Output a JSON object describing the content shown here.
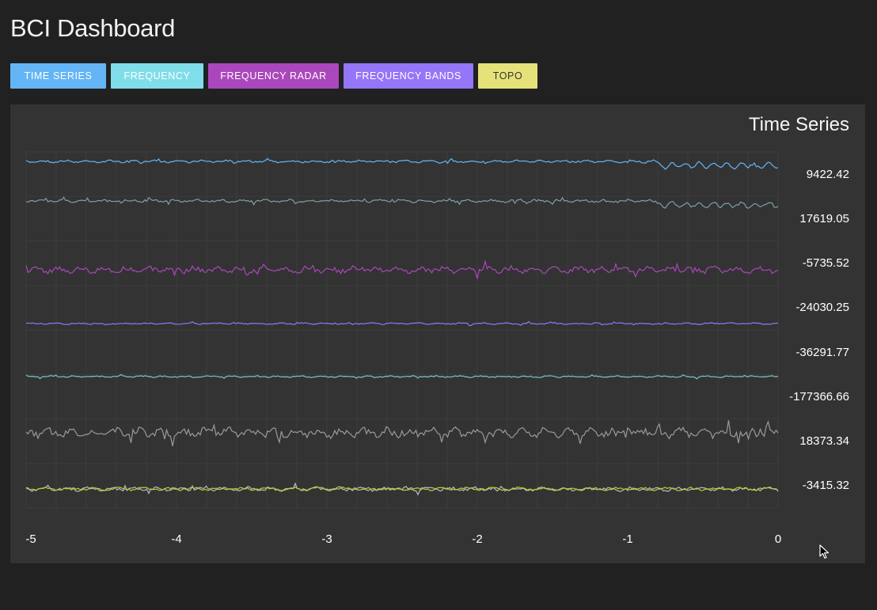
{
  "app": {
    "title": "BCI Dashboard"
  },
  "tabs": [
    {
      "label": "TIME SERIES",
      "color": "#64b5f6",
      "text_color": "#ffffff"
    },
    {
      "label": "FREQUENCY",
      "color": "#80deea",
      "text_color": "#ffffff"
    },
    {
      "label": "FREQUENCY RADAR",
      "color": "#ab47bc",
      "text_color": "#ffffff"
    },
    {
      "label": "FREQUENCY BANDS",
      "color": "#9575f8",
      "text_color": "#ffffff"
    },
    {
      "label": "TOPO",
      "color": "#e6e27a",
      "text_color": "#333333"
    }
  ],
  "panel": {
    "title": "Time Series"
  },
  "chart_data": {
    "type": "line",
    "title": "Time Series",
    "x_ticks": [
      "-5",
      "-4",
      "-3",
      "-2",
      "-1",
      "0"
    ],
    "xlim": [
      -5,
      0
    ],
    "grid": true,
    "series": [
      {
        "value_label": "9422.42",
        "color": "#64b5f6"
      },
      {
        "value_label": "17619.05",
        "color": "#78a3a8"
      },
      {
        "value_label": "-5735.52",
        "color": "#ab47bc"
      },
      {
        "value_label": "-24030.25",
        "color": "#9575f8"
      },
      {
        "value_label": "-36291.77",
        "color": "#80c6c6"
      },
      {
        "value_label": "-177366.66",
        "color": "#9a9a9a"
      },
      {
        "value_label": "18373.34",
        "color": "#b0bec5"
      },
      {
        "value_label": "-3415.32",
        "color": "#c0ca33"
      }
    ]
  }
}
